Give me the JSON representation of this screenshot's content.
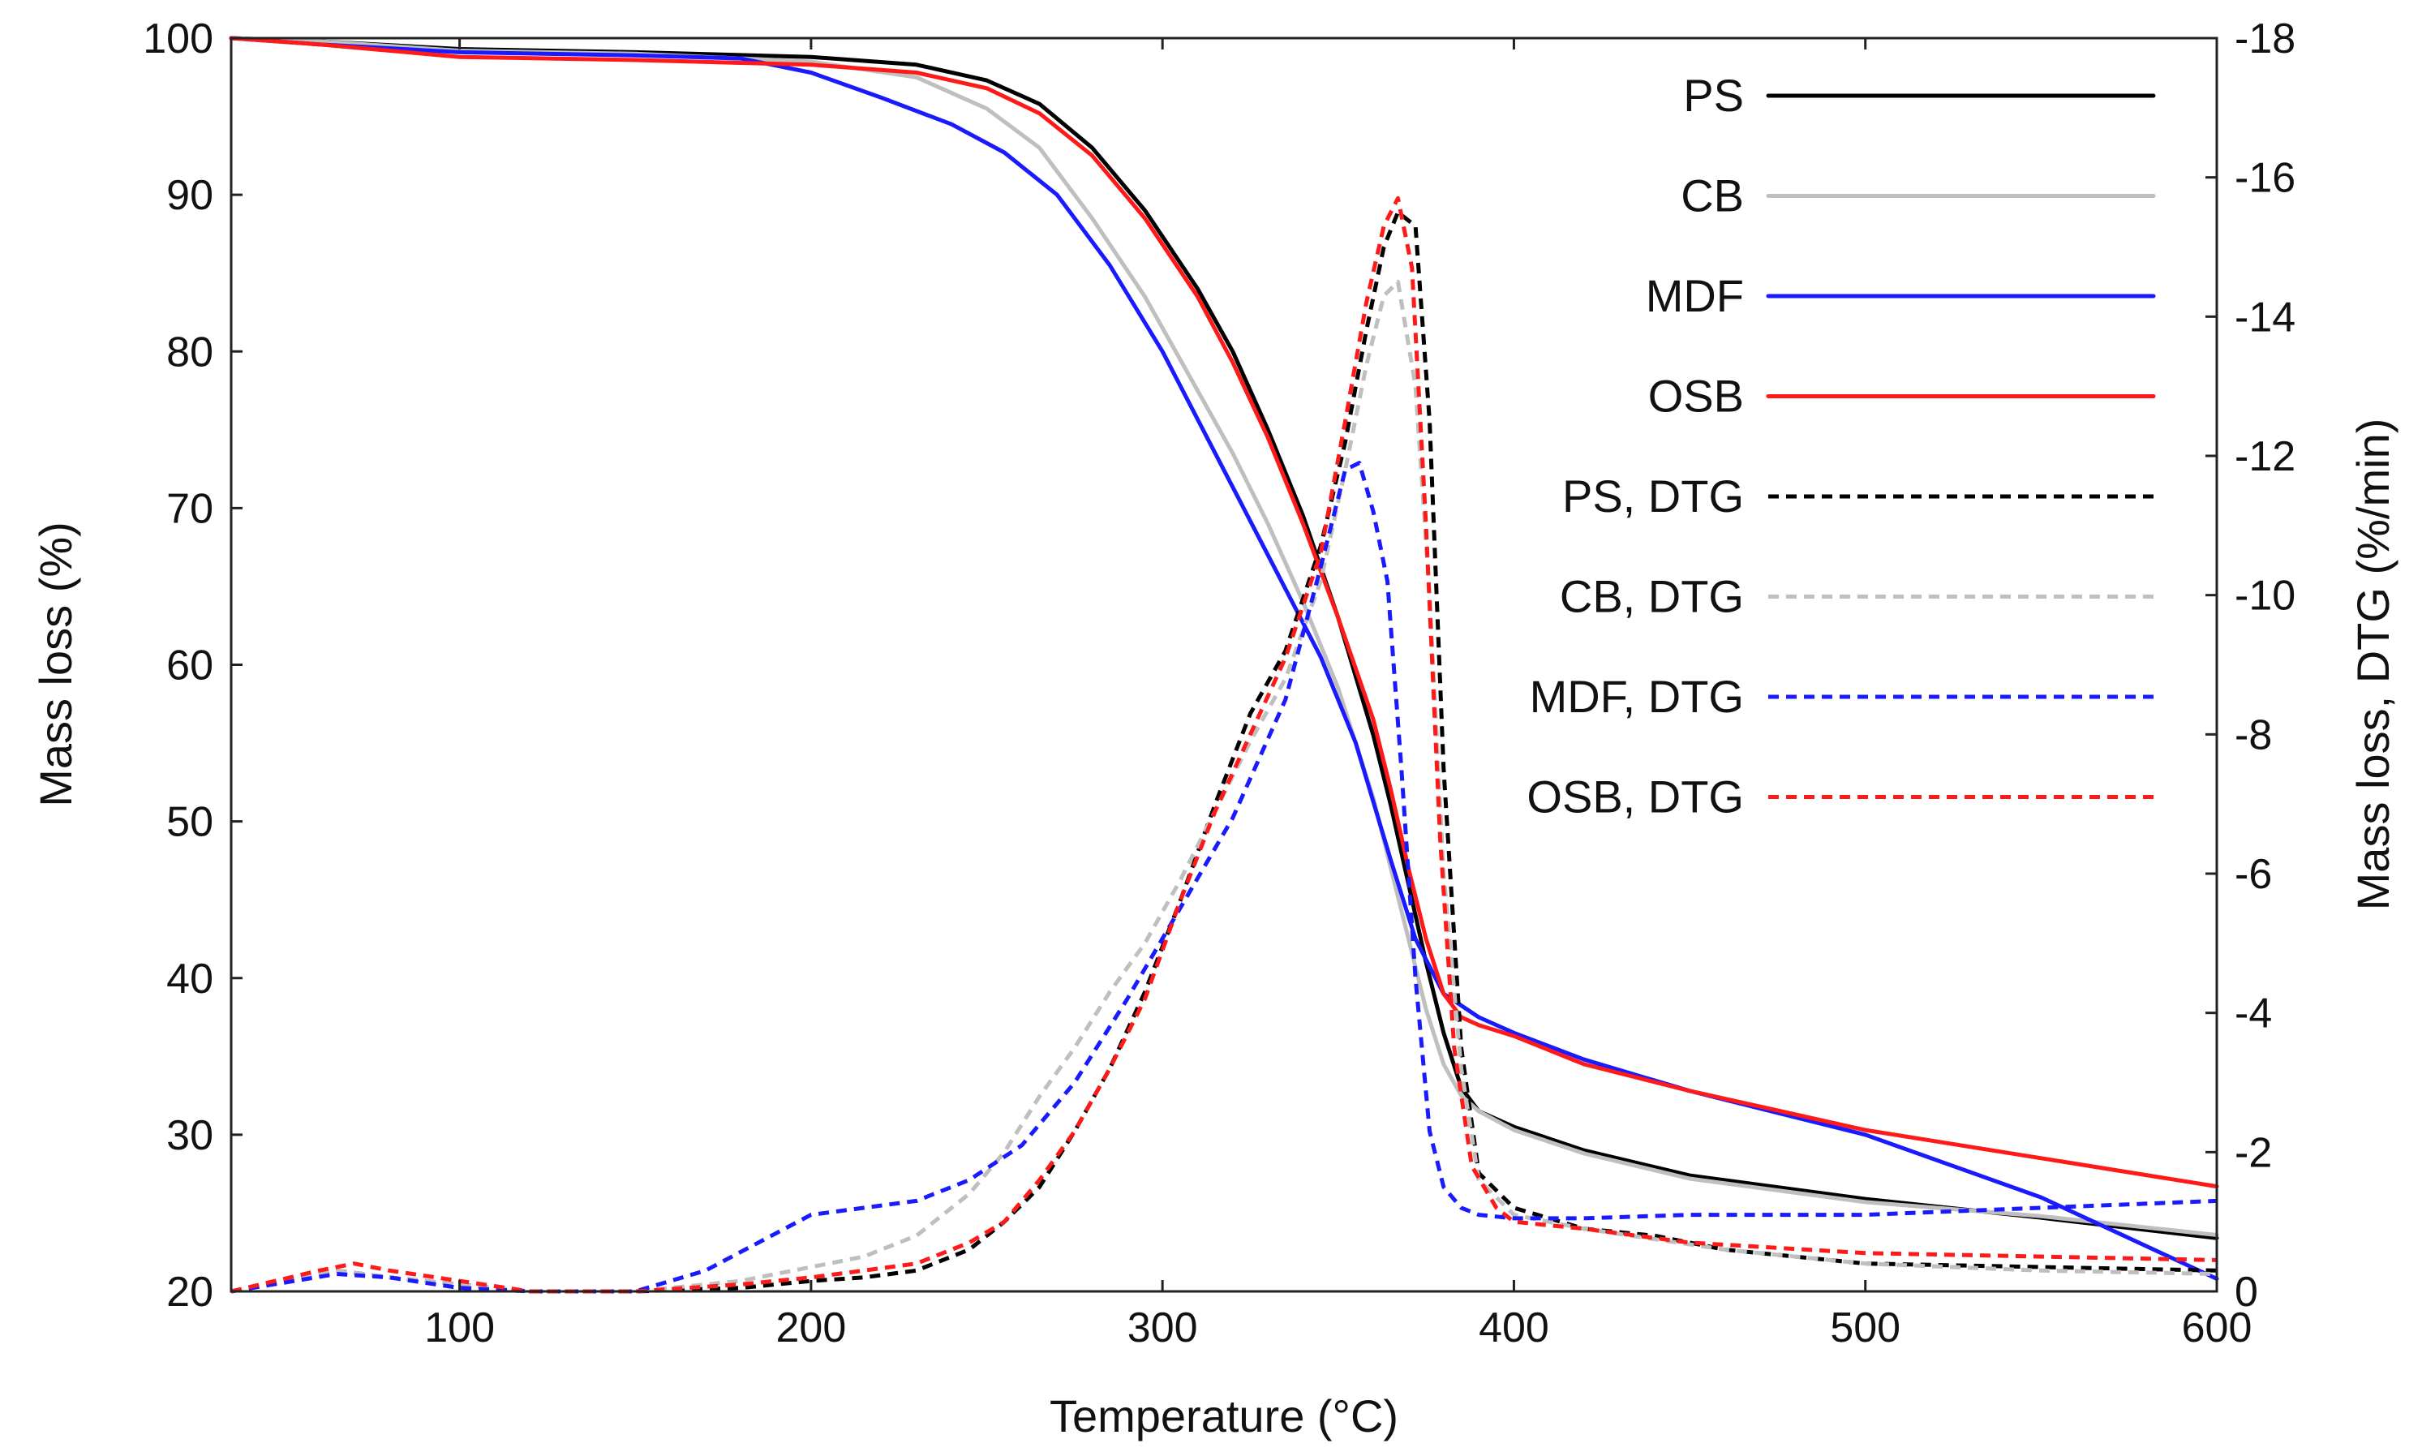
{
  "chart_data": {
    "type": "line",
    "xlabel": "Temperature (°C)",
    "ylabel": "Mass loss (%)",
    "y2label": "Mass loss, DTG (%/min)",
    "xlim": [
      35,
      600
    ],
    "ylim": [
      20,
      100
    ],
    "y2lim": [
      0,
      -18
    ],
    "xticks": [
      100,
      200,
      300,
      400,
      500,
      600
    ],
    "yticks": [
      20,
      30,
      40,
      50,
      60,
      70,
      80,
      90,
      100
    ],
    "y2ticks": [
      0,
      -2,
      -4,
      -6,
      -8,
      -10,
      -12,
      -14,
      -16,
      -18
    ],
    "grid": false,
    "legend_position": "top-right",
    "series": [
      {
        "name": "PS",
        "axis": "left",
        "style": "solid",
        "color": "#000000",
        "x": [
          35,
          60,
          100,
          150,
          200,
          230,
          250,
          265,
          280,
          295,
          310,
          320,
          330,
          340,
          350,
          360,
          365,
          370,
          375,
          380,
          385,
          390,
          400,
          420,
          450,
          500,
          550,
          600
        ],
        "y": [
          100,
          99.8,
          99.3,
          99.1,
          98.8,
          98.3,
          97.3,
          95.8,
          93,
          89,
          84,
          80,
          75,
          69.5,
          63,
          55.5,
          51,
          46,
          41,
          36.5,
          33,
          31.5,
          30.5,
          29,
          27.4,
          25.9,
          24.7,
          23.4
        ]
      },
      {
        "name": "CB",
        "axis": "left",
        "style": "solid",
        "color": "#bfbfbf",
        "x": [
          35,
          60,
          100,
          150,
          200,
          230,
          250,
          265,
          280,
          295,
          310,
          320,
          330,
          340,
          350,
          360,
          365,
          370,
          375,
          380,
          385,
          390,
          400,
          420,
          450,
          500,
          550,
          600
        ],
        "y": [
          100,
          99.8,
          99.2,
          99,
          98.5,
          97.5,
          95.5,
          93,
          88.5,
          83.5,
          77.5,
          73.5,
          69,
          64,
          58.5,
          51.5,
          47,
          42.5,
          38,
          34.5,
          32.5,
          31.5,
          30.3,
          28.8,
          27.2,
          25.7,
          24.8,
          23.6
        ]
      },
      {
        "name": "MDF",
        "axis": "left",
        "style": "solid",
        "color": "#1a1aff",
        "x": [
          35,
          60,
          100,
          150,
          180,
          200,
          220,
          240,
          255,
          270,
          285,
          300,
          315,
          330,
          345,
          355,
          365,
          372,
          380,
          390,
          400,
          420,
          450,
          500,
          550,
          600
        ],
        "y": [
          100,
          99.6,
          99.1,
          98.9,
          98.7,
          97.8,
          96.2,
          94.5,
          92.7,
          90,
          85.5,
          80,
          73.5,
          67,
          60.5,
          55,
          47.5,
          42.5,
          39,
          37.5,
          36.5,
          34.8,
          32.8,
          30,
          26,
          20.8
        ]
      },
      {
        "name": "OSB",
        "axis": "left",
        "style": "solid",
        "color": "#ff1a1a",
        "x": [
          35,
          60,
          100,
          150,
          200,
          230,
          250,
          265,
          280,
          295,
          310,
          320,
          330,
          340,
          350,
          360,
          365,
          370,
          375,
          380,
          385,
          390,
          400,
          420,
          450,
          500,
          550,
          600
        ],
        "y": [
          100,
          99.6,
          98.8,
          98.6,
          98.3,
          97.8,
          96.8,
          95.2,
          92.5,
          88.5,
          83.5,
          79.3,
          74.5,
          69,
          63,
          56.5,
          52,
          47,
          42.5,
          39,
          37.5,
          37,
          36.3,
          34.5,
          32.8,
          30.3,
          28.5,
          26.7
        ]
      },
      {
        "name": "PS, DTG",
        "axis": "right",
        "style": "dashed",
        "color": "#000000",
        "x": [
          35,
          65,
          80,
          100,
          120,
          150,
          180,
          200,
          215,
          230,
          245,
          255,
          265,
          275,
          285,
          295,
          305,
          315,
          325,
          335,
          345,
          352,
          358,
          363,
          367,
          372,
          376,
          380,
          385,
          390,
          400,
          420,
          440,
          460,
          480,
          500,
          550,
          600
        ],
        "y": [
          0,
          -0.3,
          -0.2,
          -0.1,
          0,
          0,
          -0.05,
          -0.15,
          -0.2,
          -0.3,
          -0.6,
          -1,
          -1.5,
          -2.3,
          -3.2,
          -4.3,
          -5.6,
          -7,
          -8.3,
          -9.2,
          -10.7,
          -12.2,
          -13.8,
          -15,
          -15.5,
          -15.3,
          -12.5,
          -7.5,
          -3.5,
          -1.7,
          -1.2,
          -0.9,
          -0.8,
          -0.6,
          -0.5,
          -0.4,
          -0.35,
          -0.3
        ]
      },
      {
        "name": "CB, DTG",
        "axis": "right",
        "style": "dashed",
        "color": "#bfbfbf",
        "x": [
          35,
          65,
          80,
          100,
          120,
          150,
          180,
          200,
          215,
          230,
          245,
          255,
          265,
          275,
          285,
          295,
          305,
          315,
          325,
          335,
          345,
          352,
          358,
          363,
          367,
          372,
          376,
          380,
          385,
          390,
          400,
          420,
          440,
          460,
          480,
          500,
          550,
          600
        ],
        "y": [
          0,
          -0.3,
          -0.2,
          -0.1,
          0,
          0,
          -0.15,
          -0.35,
          -0.5,
          -0.8,
          -1.4,
          -2,
          -2.8,
          -3.5,
          -4.3,
          -5,
          -5.9,
          -6.9,
          -7.9,
          -8.8,
          -10.2,
          -11.8,
          -13.3,
          -14.3,
          -14.5,
          -13,
          -10,
          -6,
          -3.2,
          -1.6,
          -1.1,
          -0.9,
          -0.75,
          -0.6,
          -0.5,
          -0.4,
          -0.3,
          -0.25
        ]
      },
      {
        "name": "MDF, DTG",
        "axis": "right",
        "style": "dashed",
        "color": "#1a1aff",
        "x": [
          35,
          65,
          80,
          100,
          120,
          150,
          170,
          185,
          200,
          215,
          230,
          245,
          260,
          275,
          290,
          305,
          320,
          335,
          345,
          352,
          356,
          360,
          364,
          368,
          372,
          376,
          380,
          385,
          390,
          400,
          420,
          450,
          500,
          550,
          600
        ],
        "y": [
          0,
          -0.25,
          -0.2,
          -0.05,
          0,
          0,
          -0.3,
          -0.7,
          -1.1,
          -1.2,
          -1.3,
          -1.6,
          -2.1,
          -3,
          -4.2,
          -5.5,
          -6.8,
          -8.5,
          -10.4,
          -11.8,
          -11.9,
          -11.2,
          -10.2,
          -7.5,
          -4.5,
          -2.3,
          -1.5,
          -1.2,
          -1.1,
          -1.05,
          -1.05,
          -1.1,
          -1.1,
          -1.2,
          -1.3
        ]
      },
      {
        "name": "OSB, DTG",
        "axis": "right",
        "style": "dashed",
        "color": "#ff1a1a",
        "x": [
          35,
          60,
          70,
          80,
          100,
          120,
          150,
          180,
          200,
          215,
          230,
          245,
          255,
          265,
          275,
          285,
          295,
          305,
          315,
          325,
          335,
          345,
          352,
          358,
          363,
          367,
          371,
          375,
          379,
          383,
          388,
          395,
          400,
          420,
          450,
          500,
          550,
          600
        ],
        "y": [
          0,
          -0.3,
          -0.4,
          -0.3,
          -0.15,
          0,
          0,
          -0.1,
          -0.2,
          -0.3,
          -0.4,
          -0.7,
          -1,
          -1.6,
          -2.3,
          -3.2,
          -4.2,
          -5.6,
          -6.9,
          -8,
          -9.1,
          -10.6,
          -12.5,
          -14.2,
          -15.3,
          -15.7,
          -14.7,
          -11,
          -6.5,
          -3.5,
          -1.8,
          -1.2,
          -1,
          -0.9,
          -0.7,
          -0.55,
          -0.5,
          -0.45
        ]
      }
    ]
  }
}
